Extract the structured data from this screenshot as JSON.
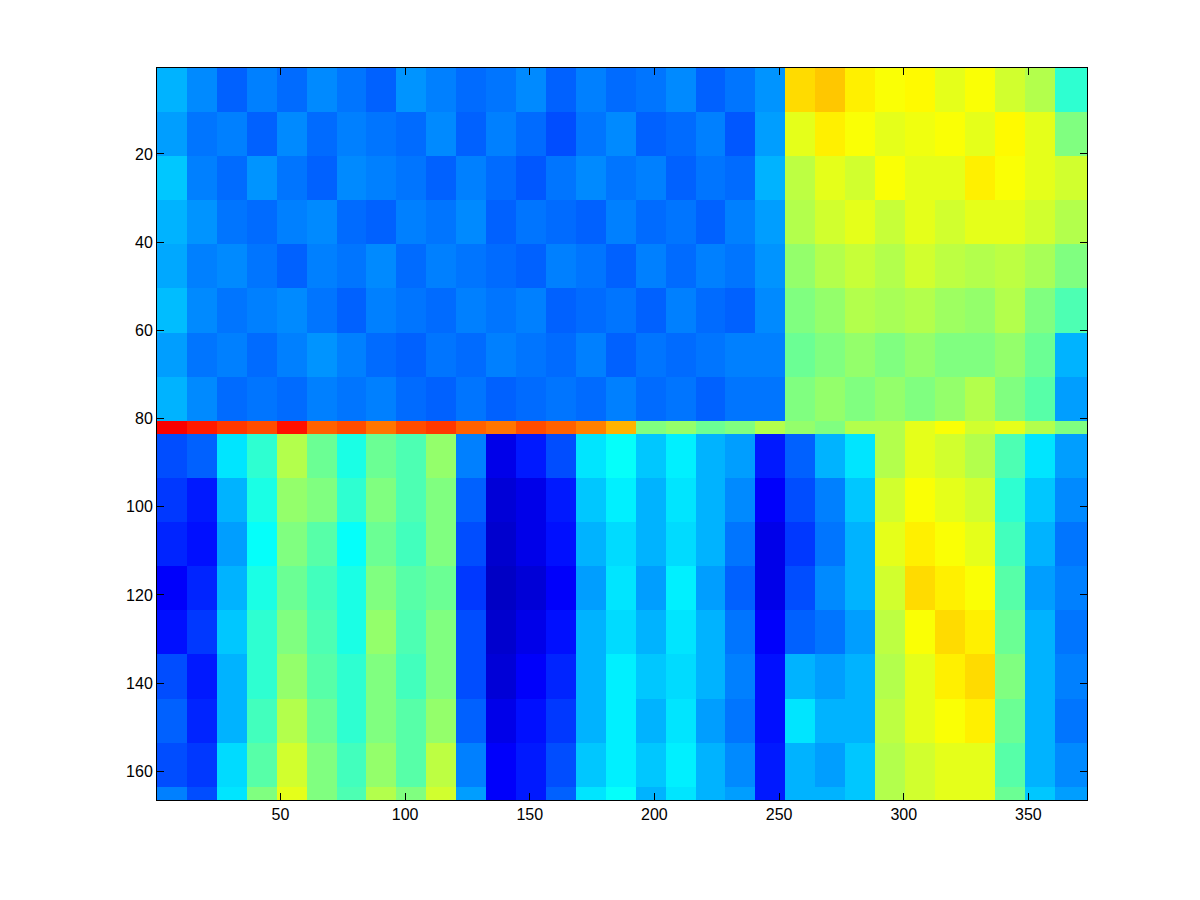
{
  "chart_data": {
    "type": "heatmap",
    "color": "jet",
    "grid": false,
    "xlim": [
      0.5,
      373.5
    ],
    "ylim": [
      166.5,
      0.5
    ],
    "xticks": [
      50,
      100,
      150,
      200,
      250,
      300,
      350
    ],
    "yticks": [
      20,
      40,
      60,
      80,
      100,
      120,
      140,
      160
    ],
    "color_range": [
      0,
      1
    ],
    "x_edges": [
      0.5,
      12.5,
      24.5,
      36.5,
      48.5,
      60.5,
      72.5,
      84.5,
      96.5,
      108.5,
      120.5,
      132.5,
      144.5,
      156.5,
      168.5,
      180.5,
      192.5,
      204.5,
      216.5,
      228.5,
      240.5,
      252.5,
      264.5,
      276.5,
      288.5,
      300.5,
      312.5,
      324.5,
      336.5,
      348.5,
      360.5,
      373.5
    ],
    "y_edges": [
      0.5,
      10.5,
      20.5,
      30.5,
      40.5,
      50.5,
      60.5,
      70.5,
      80.5,
      83.5,
      93.5,
      103.5,
      113.5,
      123.5,
      133.5,
      143.5,
      153.5,
      163.5,
      166.5
    ],
    "cells": [
      [
        0.3,
        0.26,
        0.22,
        0.25,
        0.23,
        0.26,
        0.24,
        0.22,
        0.27,
        0.25,
        0.23,
        0.24,
        0.26,
        0.22,
        0.25,
        0.23,
        0.24,
        0.26,
        0.22,
        0.24,
        0.27,
        0.66,
        0.68,
        0.64,
        0.62,
        0.63,
        0.6,
        0.62,
        0.58,
        0.55,
        0.42
      ],
      [
        0.28,
        0.24,
        0.25,
        0.22,
        0.26,
        0.23,
        0.25,
        0.24,
        0.23,
        0.26,
        0.22,
        0.25,
        0.23,
        0.2,
        0.24,
        0.26,
        0.22,
        0.23,
        0.25,
        0.21,
        0.28,
        0.6,
        0.64,
        0.62,
        0.6,
        0.61,
        0.62,
        0.6,
        0.63,
        0.6,
        0.5
      ],
      [
        0.32,
        0.25,
        0.23,
        0.27,
        0.24,
        0.22,
        0.26,
        0.25,
        0.24,
        0.22,
        0.25,
        0.23,
        0.21,
        0.24,
        0.26,
        0.24,
        0.25,
        0.22,
        0.24,
        0.23,
        0.3,
        0.56,
        0.6,
        0.58,
        0.62,
        0.6,
        0.6,
        0.64,
        0.62,
        0.6,
        0.58
      ],
      [
        0.3,
        0.27,
        0.24,
        0.23,
        0.25,
        0.26,
        0.23,
        0.22,
        0.25,
        0.24,
        0.26,
        0.22,
        0.24,
        0.23,
        0.22,
        0.25,
        0.23,
        0.24,
        0.22,
        0.25,
        0.28,
        0.55,
        0.58,
        0.6,
        0.57,
        0.6,
        0.58,
        0.6,
        0.6,
        0.58,
        0.55
      ],
      [
        0.29,
        0.25,
        0.26,
        0.24,
        0.22,
        0.25,
        0.24,
        0.26,
        0.23,
        0.25,
        0.24,
        0.23,
        0.22,
        0.25,
        0.24,
        0.22,
        0.25,
        0.23,
        0.25,
        0.24,
        0.27,
        0.52,
        0.55,
        0.57,
        0.55,
        0.58,
        0.56,
        0.55,
        0.56,
        0.54,
        0.5
      ],
      [
        0.31,
        0.26,
        0.24,
        0.25,
        0.26,
        0.24,
        0.22,
        0.25,
        0.24,
        0.23,
        0.25,
        0.24,
        0.25,
        0.22,
        0.23,
        0.24,
        0.22,
        0.25,
        0.23,
        0.22,
        0.26,
        0.5,
        0.52,
        0.55,
        0.54,
        0.55,
        0.53,
        0.52,
        0.55,
        0.5,
        0.45
      ],
      [
        0.28,
        0.24,
        0.25,
        0.23,
        0.25,
        0.27,
        0.25,
        0.23,
        0.22,
        0.24,
        0.23,
        0.25,
        0.24,
        0.23,
        0.25,
        0.22,
        0.24,
        0.23,
        0.24,
        0.25,
        0.25,
        0.48,
        0.5,
        0.52,
        0.5,
        0.52,
        0.5,
        0.5,
        0.52,
        0.48,
        0.3
      ],
      [
        0.3,
        0.26,
        0.23,
        0.24,
        0.23,
        0.25,
        0.24,
        0.25,
        0.23,
        0.22,
        0.24,
        0.22,
        0.23,
        0.24,
        0.23,
        0.25,
        0.23,
        0.24,
        0.22,
        0.24,
        0.24,
        0.5,
        0.52,
        0.5,
        0.52,
        0.5,
        0.52,
        0.55,
        0.5,
        0.46,
        0.28
      ],
      [
        0.88,
        0.85,
        0.82,
        0.8,
        0.86,
        0.78,
        0.8,
        0.76,
        0.8,
        0.82,
        0.78,
        0.76,
        0.8,
        0.78,
        0.75,
        0.7,
        0.5,
        0.52,
        0.48,
        0.5,
        0.55,
        0.52,
        0.5,
        0.55,
        0.55,
        0.6,
        0.62,
        0.58,
        0.6,
        0.55,
        0.5
      ],
      [
        0.2,
        0.22,
        0.35,
        0.42,
        0.55,
        0.48,
        0.4,
        0.48,
        0.45,
        0.52,
        0.25,
        0.1,
        0.15,
        0.2,
        0.35,
        0.38,
        0.32,
        0.36,
        0.3,
        0.28,
        0.15,
        0.22,
        0.3,
        0.35,
        0.55,
        0.6,
        0.58,
        0.55,
        0.45,
        0.35,
        0.28
      ],
      [
        0.18,
        0.15,
        0.3,
        0.4,
        0.52,
        0.5,
        0.42,
        0.5,
        0.45,
        0.5,
        0.22,
        0.08,
        0.1,
        0.15,
        0.32,
        0.36,
        0.3,
        0.35,
        0.3,
        0.26,
        0.12,
        0.2,
        0.25,
        0.32,
        0.58,
        0.62,
        0.6,
        0.58,
        0.42,
        0.32,
        0.26
      ],
      [
        0.16,
        0.14,
        0.28,
        0.38,
        0.5,
        0.46,
        0.38,
        0.48,
        0.44,
        0.5,
        0.2,
        0.07,
        0.1,
        0.14,
        0.3,
        0.34,
        0.3,
        0.34,
        0.3,
        0.24,
        0.1,
        0.18,
        0.24,
        0.3,
        0.6,
        0.64,
        0.62,
        0.6,
        0.44,
        0.3,
        0.24
      ],
      [
        0.12,
        0.16,
        0.3,
        0.4,
        0.48,
        0.44,
        0.4,
        0.5,
        0.46,
        0.48,
        0.18,
        0.06,
        0.08,
        0.12,
        0.28,
        0.35,
        0.28,
        0.36,
        0.28,
        0.22,
        0.1,
        0.2,
        0.26,
        0.3,
        0.58,
        0.66,
        0.64,
        0.62,
        0.46,
        0.28,
        0.25
      ],
      [
        0.14,
        0.18,
        0.32,
        0.42,
        0.5,
        0.45,
        0.4,
        0.52,
        0.45,
        0.5,
        0.2,
        0.07,
        0.1,
        0.14,
        0.3,
        0.34,
        0.3,
        0.35,
        0.3,
        0.24,
        0.12,
        0.22,
        0.24,
        0.28,
        0.56,
        0.62,
        0.66,
        0.64,
        0.48,
        0.3,
        0.24
      ],
      [
        0.2,
        0.15,
        0.3,
        0.42,
        0.52,
        0.46,
        0.42,
        0.5,
        0.44,
        0.5,
        0.2,
        0.08,
        0.12,
        0.16,
        0.3,
        0.36,
        0.32,
        0.34,
        0.3,
        0.25,
        0.14,
        0.3,
        0.28,
        0.3,
        0.55,
        0.6,
        0.64,
        0.66,
        0.5,
        0.3,
        0.25
      ],
      [
        0.22,
        0.16,
        0.3,
        0.44,
        0.55,
        0.48,
        0.42,
        0.5,
        0.46,
        0.52,
        0.22,
        0.1,
        0.14,
        0.18,
        0.3,
        0.36,
        0.3,
        0.35,
        0.28,
        0.24,
        0.14,
        0.35,
        0.3,
        0.3,
        0.56,
        0.6,
        0.62,
        0.64,
        0.48,
        0.3,
        0.24
      ],
      [
        0.2,
        0.18,
        0.34,
        0.46,
        0.58,
        0.5,
        0.44,
        0.52,
        0.46,
        0.56,
        0.25,
        0.12,
        0.15,
        0.2,
        0.32,
        0.36,
        0.32,
        0.36,
        0.3,
        0.26,
        0.15,
        0.3,
        0.28,
        0.32,
        0.55,
        0.58,
        0.6,
        0.6,
        0.46,
        0.3,
        0.26
      ],
      [
        0.25,
        0.2,
        0.35,
        0.5,
        0.6,
        0.5,
        0.45,
        0.55,
        0.5,
        0.58,
        0.28,
        0.12,
        0.15,
        0.22,
        0.35,
        0.38,
        0.3,
        0.35,
        0.3,
        0.28,
        0.15,
        0.3,
        0.3,
        0.32,
        0.55,
        0.58,
        0.6,
        0.6,
        0.48,
        0.32,
        0.28
      ]
    ]
  }
}
